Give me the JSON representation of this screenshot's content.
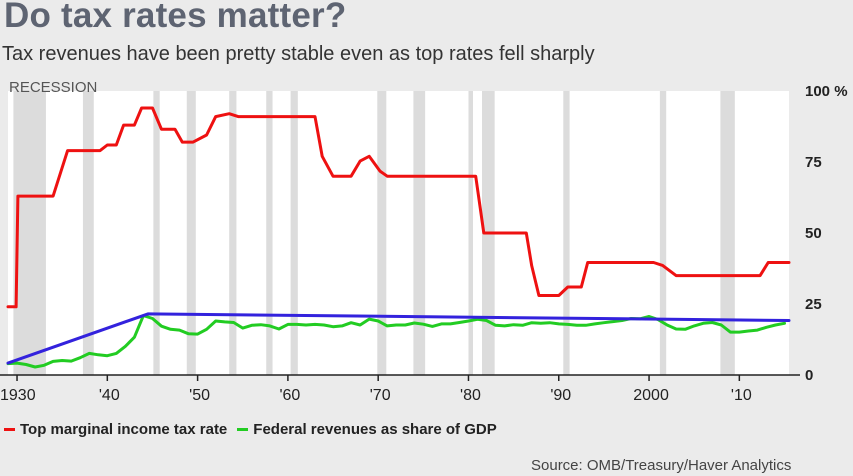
{
  "title": "Do tax rates matter?",
  "subtitle": "Tax revenues have been pretty stable even as top rates fell sharply",
  "source": "Source: OMB/Treasury/Haver Analytics",
  "colors": {
    "top_rate": "#ee1111",
    "revenues": "#22cc22",
    "trend": "#3322dd",
    "recession": "#dcdcdc",
    "plot_bg": "#ffffff"
  },
  "chart_data": {
    "type": "line",
    "recession_label": "RECESSION",
    "xlim": [
      1929,
      2015.5
    ],
    "ylim": [
      0,
      100
    ],
    "x_ticks": [
      1930,
      1940,
      1950,
      1960,
      1970,
      1980,
      1990,
      2000,
      2010
    ],
    "x_tick_labels": [
      "1930",
      "'40",
      "'50",
      "'60",
      "'70",
      "'80",
      "'90",
      "2000",
      "'10"
    ],
    "y_ticks": [
      0,
      25,
      50,
      75,
      100
    ],
    "y_tick_labels": [
      "0",
      "25",
      "50",
      "75",
      "100 %"
    ],
    "grid": "off",
    "legend_placement": "bottom-left",
    "recessions": [
      [
        1929.6,
        1933.2
      ],
      [
        1937.3,
        1938.5
      ],
      [
        1945.1,
        1945.8
      ],
      [
        1948.8,
        1949.8
      ],
      [
        1953.5,
        1954.3
      ],
      [
        1957.6,
        1958.3
      ],
      [
        1960.3,
        1961.1
      ],
      [
        1969.9,
        1970.9
      ],
      [
        1973.9,
        1975.2
      ],
      [
        1980.0,
        1980.5
      ],
      [
        1981.5,
        1982.9
      ],
      [
        1990.5,
        1991.2
      ],
      [
        2001.2,
        2001.9
      ],
      [
        2007.9,
        2009.5
      ]
    ],
    "series": [
      {
        "name": "Top marginal income tax rate",
        "color": "#ee1111",
        "points": [
          [
            1929,
            24
          ],
          [
            1929.9,
            24
          ],
          [
            1930.1,
            63
          ],
          [
            1933,
            63
          ],
          [
            1934,
            63
          ],
          [
            1935.6,
            79
          ],
          [
            1938,
            79
          ],
          [
            1939.2,
            79
          ],
          [
            1940,
            81
          ],
          [
            1941,
            81
          ],
          [
            1941.8,
            88
          ],
          [
            1943,
            88
          ],
          [
            1943.8,
            94
          ],
          [
            1945,
            94
          ],
          [
            1946,
            86.5
          ],
          [
            1947.5,
            86.5
          ],
          [
            1948.3,
            82
          ],
          [
            1949.5,
            82
          ],
          [
            1951,
            84.5
          ],
          [
            1952,
            91
          ],
          [
            1953.5,
            92
          ],
          [
            1954.5,
            91
          ],
          [
            1963,
            91
          ],
          [
            1963.8,
            77
          ],
          [
            1965,
            70
          ],
          [
            1967,
            70
          ],
          [
            1968,
            75.3
          ],
          [
            1969,
            77
          ],
          [
            1970.2,
            71.8
          ],
          [
            1971,
            70
          ],
          [
            1980.8,
            70
          ],
          [
            1981.7,
            50
          ],
          [
            1986.4,
            50
          ],
          [
            1987,
            38.5
          ],
          [
            1987.8,
            28
          ],
          [
            1990,
            28
          ],
          [
            1991,
            31
          ],
          [
            1992.5,
            31
          ],
          [
            1993.2,
            39.6
          ],
          [
            2000.5,
            39.6
          ],
          [
            2001.5,
            38.6
          ],
          [
            2003,
            35
          ],
          [
            2012.3,
            35
          ],
          [
            2013.2,
            39.6
          ],
          [
            2015.5,
            39.6
          ]
        ]
      },
      {
        "name": "Federal revenues as share of GDP",
        "color": "#22cc22",
        "points": [
          [
            1929,
            4
          ],
          [
            1930,
            4.2
          ],
          [
            1931,
            3.7
          ],
          [
            1932,
            2.8
          ],
          [
            1933,
            3.4
          ],
          [
            1934,
            4.8
          ],
          [
            1935,
            5.1
          ],
          [
            1936,
            4.9
          ],
          [
            1937,
            6.1
          ],
          [
            1938,
            7.6
          ],
          [
            1939,
            7.1
          ],
          [
            1940,
            6.8
          ],
          [
            1941,
            7.6
          ],
          [
            1942,
            10.1
          ],
          [
            1943,
            13.3
          ],
          [
            1944,
            20.9
          ],
          [
            1945,
            19.9
          ],
          [
            1946,
            17.2
          ],
          [
            1947,
            16.1
          ],
          [
            1948,
            15.8
          ],
          [
            1949,
            14.5
          ],
          [
            1950,
            14.4
          ],
          [
            1951,
            16.1
          ],
          [
            1952,
            19.0
          ],
          [
            1953,
            18.7
          ],
          [
            1954,
            18.5
          ],
          [
            1955,
            16.5
          ],
          [
            1956,
            17.5
          ],
          [
            1957,
            17.7
          ],
          [
            1958,
            17.3
          ],
          [
            1959,
            16.2
          ],
          [
            1960,
            17.8
          ],
          [
            1961,
            17.8
          ],
          [
            1962,
            17.6
          ],
          [
            1963,
            17.8
          ],
          [
            1964,
            17.6
          ],
          [
            1965,
            17.0
          ],
          [
            1966,
            17.3
          ],
          [
            1967,
            18.4
          ],
          [
            1968,
            17.6
          ],
          [
            1969,
            19.7
          ],
          [
            1970,
            19.0
          ],
          [
            1971,
            17.3
          ],
          [
            1972,
            17.6
          ],
          [
            1973,
            17.6
          ],
          [
            1974,
            18.3
          ],
          [
            1975,
            17.9
          ],
          [
            1976,
            17.1
          ],
          [
            1977,
            18.0
          ],
          [
            1978,
            18.0
          ],
          [
            1979,
            18.5
          ],
          [
            1980,
            19.0
          ],
          [
            1981,
            19.6
          ],
          [
            1982,
            19.2
          ],
          [
            1983,
            17.5
          ],
          [
            1984,
            17.3
          ],
          [
            1985,
            17.7
          ],
          [
            1986,
            17.5
          ],
          [
            1987,
            18.4
          ],
          [
            1988,
            18.2
          ],
          [
            1989,
            18.4
          ],
          [
            1990,
            18.0
          ],
          [
            1991,
            17.8
          ],
          [
            1992,
            17.5
          ],
          [
            1993,
            17.5
          ],
          [
            1994,
            18.0
          ],
          [
            1995,
            18.4
          ],
          [
            1996,
            18.8
          ],
          [
            1997,
            19.2
          ],
          [
            1998,
            19.9
          ],
          [
            1999,
            19.8
          ],
          [
            2000,
            20.6
          ],
          [
            2001,
            19.5
          ],
          [
            2002,
            17.6
          ],
          [
            2003,
            16.2
          ],
          [
            2004,
            16.1
          ],
          [
            2005,
            17.3
          ],
          [
            2006,
            18.2
          ],
          [
            2007,
            18.5
          ],
          [
            2008,
            17.6
          ],
          [
            2009,
            15.1
          ],
          [
            2010,
            15.1
          ],
          [
            2011,
            15.5
          ],
          [
            2012,
            15.8
          ],
          [
            2013,
            16.8
          ],
          [
            2014,
            17.6
          ],
          [
            2015,
            18.2
          ]
        ]
      },
      {
        "color": "#3322dd",
        "points": [
          [
            1929,
            4.2
          ],
          [
            1944.5,
            21.5
          ],
          [
            2015.5,
            19.2
          ]
        ]
      }
    ]
  }
}
